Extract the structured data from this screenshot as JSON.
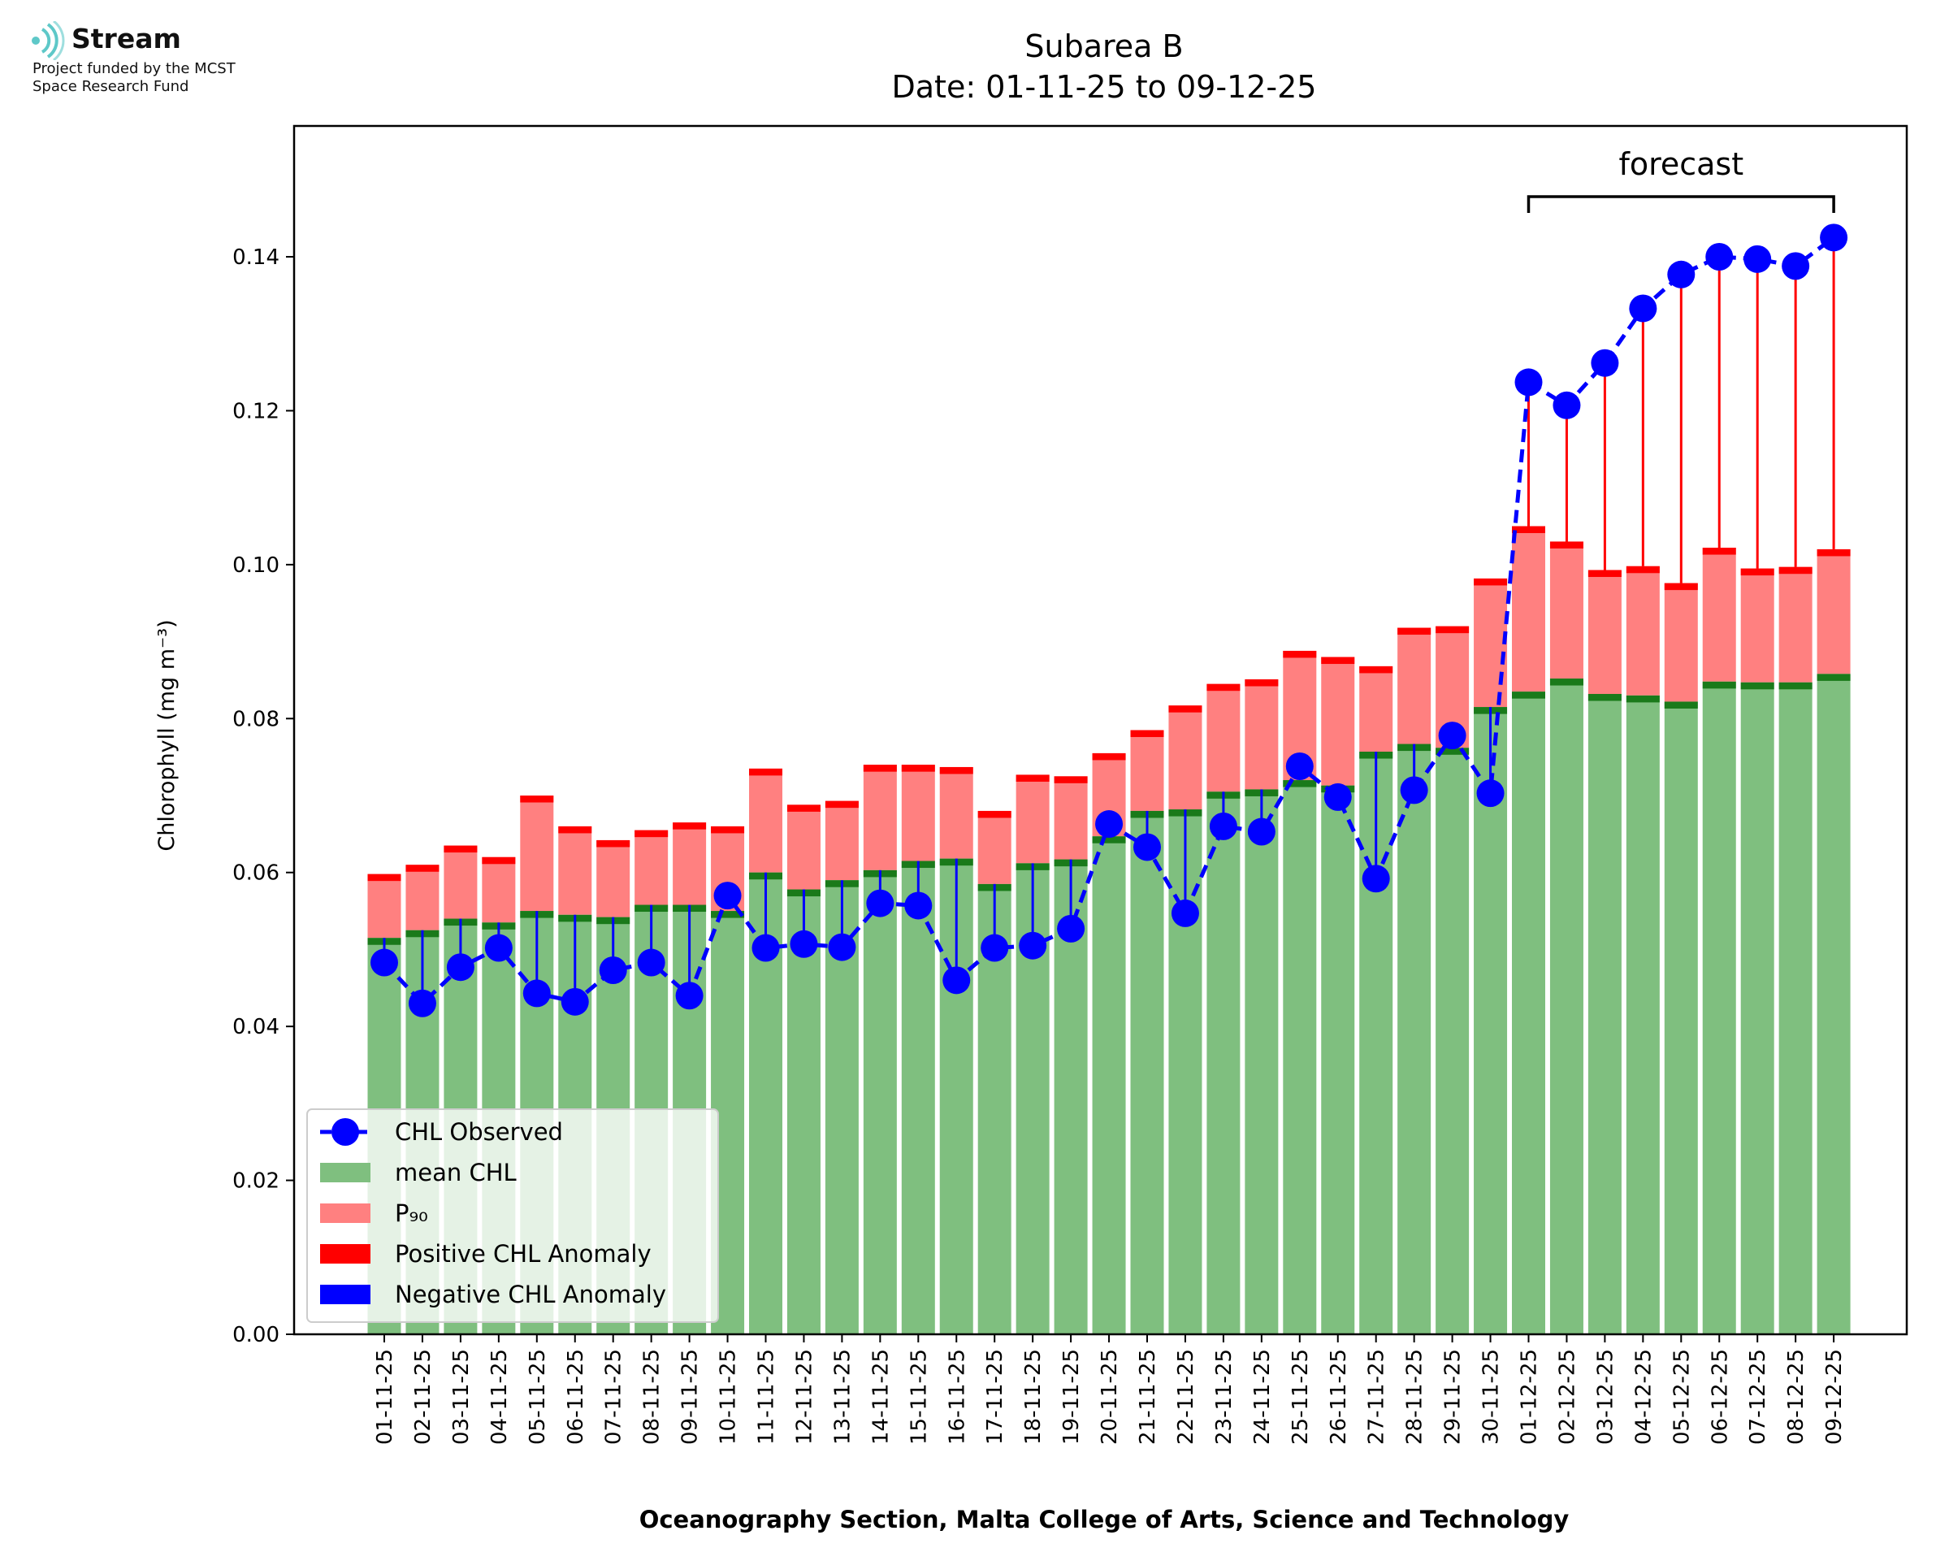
{
  "logo": {
    "name": "Stream",
    "subtitle_line1": "Project funded by the MCST",
    "subtitle_line2": "Space Research Fund",
    "icon": "wave-signal-icon",
    "color": "#5ec8c8"
  },
  "chart_data": {
    "type": "bar",
    "title": "Subarea B",
    "subtitle": "Date: 01-11-25 to 09-12-25",
    "xlabel": "Oceanography Section, Malta College of Arts, Science and Technology",
    "ylabel": "Chlorophyll (mg m⁻³)",
    "ylim": [
      0,
      0.157
    ],
    "yticks": [
      "0.00",
      "0.02",
      "0.04",
      "0.06",
      "0.08",
      "0.10",
      "0.12",
      "0.14"
    ],
    "annotation": "forecast",
    "forecast_start": "01-12-25",
    "forecast_end": "09-12-25",
    "categories": [
      "01-11-25",
      "02-11-25",
      "03-11-25",
      "04-11-25",
      "05-11-25",
      "06-11-25",
      "07-11-25",
      "08-11-25",
      "09-11-25",
      "10-11-25",
      "11-11-25",
      "12-11-25",
      "13-11-25",
      "14-11-25",
      "15-11-25",
      "16-11-25",
      "17-11-25",
      "18-11-25",
      "19-11-25",
      "20-11-25",
      "21-11-25",
      "22-11-25",
      "23-11-25",
      "24-11-25",
      "25-11-25",
      "26-11-25",
      "27-11-25",
      "28-11-25",
      "29-11-25",
      "30-11-25",
      "01-12-25",
      "02-12-25",
      "03-12-25",
      "04-12-25",
      "05-12-25",
      "06-12-25",
      "07-12-25",
      "08-12-25",
      "09-12-25"
    ],
    "series": [
      {
        "name": "mean CHL",
        "color": "#7fbf7f",
        "values": [
          0.0515,
          0.0525,
          0.054,
          0.0535,
          0.055,
          0.0545,
          0.0542,
          0.0558,
          0.0558,
          0.055,
          0.06,
          0.0578,
          0.059,
          0.0603,
          0.0615,
          0.0618,
          0.0585,
          0.0612,
          0.0617,
          0.0647,
          0.068,
          0.0682,
          0.0705,
          0.0708,
          0.072,
          0.0713,
          0.0757,
          0.0767,
          0.0762,
          0.0815,
          0.0835,
          0.0852,
          0.0832,
          0.083,
          0.0822,
          0.0848,
          0.0847,
          0.0847,
          0.0858
        ]
      },
      {
        "name": "P₉₀",
        "color": "#ff8080",
        "values": [
          0.0598,
          0.061,
          0.0635,
          0.062,
          0.07,
          0.066,
          0.0642,
          0.0655,
          0.0665,
          0.066,
          0.0735,
          0.0688,
          0.0693,
          0.074,
          0.074,
          0.0737,
          0.068,
          0.0727,
          0.0725,
          0.0755,
          0.0785,
          0.0817,
          0.0845,
          0.0851,
          0.0888,
          0.088,
          0.0868,
          0.0918,
          0.092,
          0.0982,
          0.105,
          0.103,
          0.0993,
          0.0998,
          0.0976,
          0.1022,
          0.0995,
          0.0997,
          0.102
        ]
      },
      {
        "name": "CHL Observed",
        "color": "#0000ff",
        "values": [
          0.0483,
          0.043,
          0.0477,
          0.0502,
          0.0443,
          0.0432,
          0.0473,
          0.0483,
          0.044,
          0.057,
          0.0502,
          0.0507,
          0.0503,
          0.056,
          0.0557,
          0.046,
          0.0502,
          0.0505,
          0.0527,
          0.0663,
          0.0633,
          0.0547,
          0.066,
          0.0653,
          0.0738,
          0.0698,
          0.0592,
          0.0707,
          0.0778,
          0.0703,
          0.1237,
          0.1207,
          0.1262,
          0.1333,
          0.1377,
          0.14,
          0.1397,
          0.1388,
          0.1425
        ]
      }
    ],
    "legend": {
      "placement": "lower-left",
      "entries": [
        "CHL Observed",
        "mean CHL",
        "P₉₀",
        "Positive CHL Anomaly",
        "Negative CHL Anomaly"
      ]
    },
    "colors": {
      "positive_anomaly": "#ff0000",
      "negative_anomaly": "#0000ff",
      "mean_edge": "#1a7a1a",
      "p90_edge": "#ff0000"
    },
    "grid": false
  }
}
